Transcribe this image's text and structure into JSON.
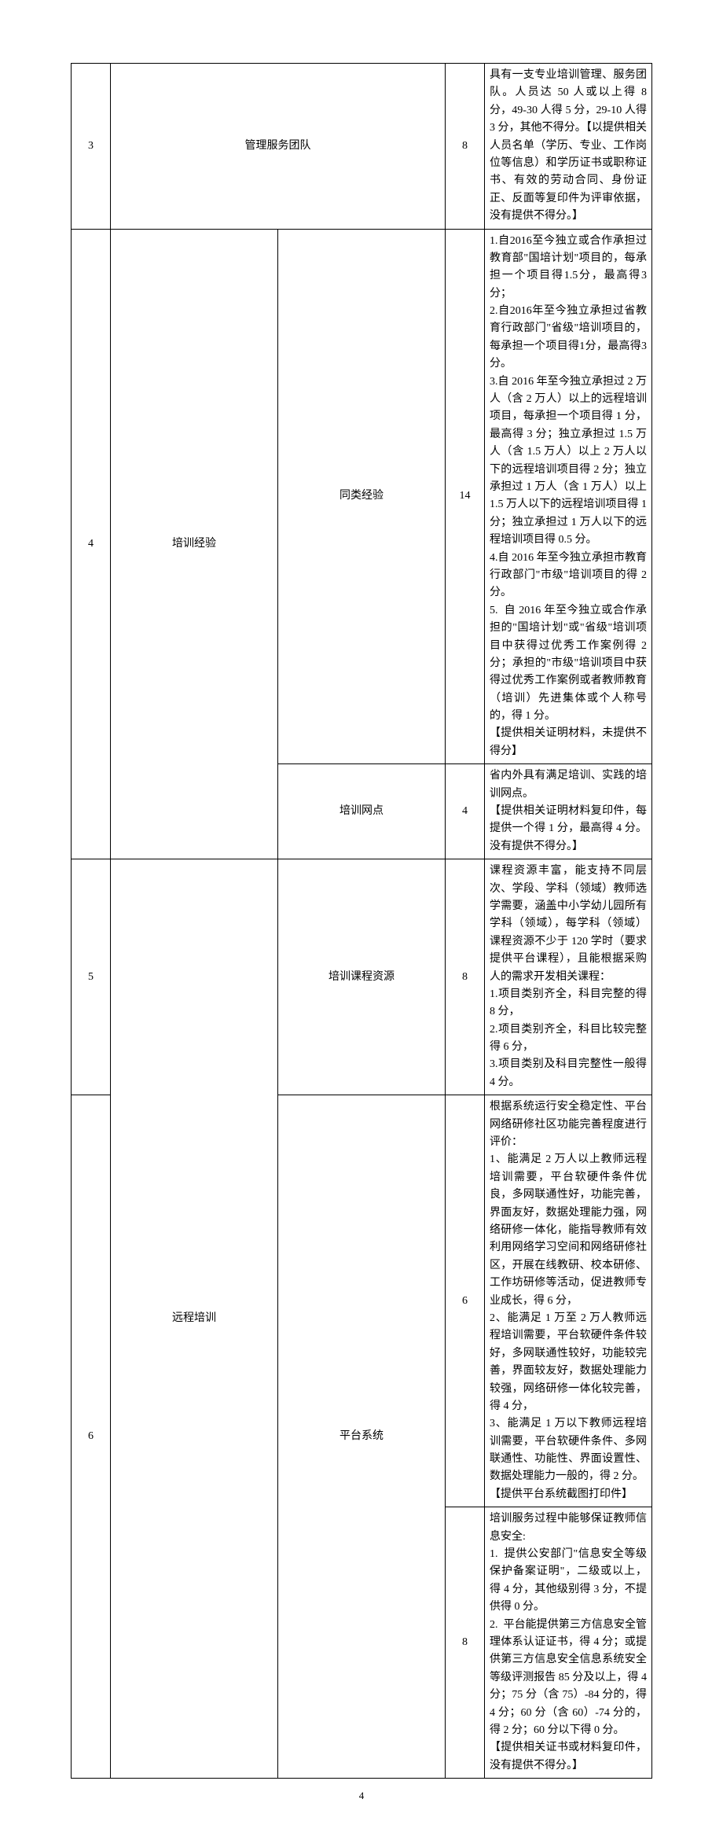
{
  "page_number": "4",
  "rows": [
    {
      "num": "3",
      "cat_merged": "管理服务团队",
      "score": "8",
      "desc": "具有一支专业培训管理、服务团队。人员达 50 人或以上得 8 分，49-30 人得 5 分，29-10 人得 3 分，其他不得分。【以提供相关人员名单（学历、专业、工作岗位等信息）和学历证书或职称证书、有效的劳动合同、身份证正、反面等复印件为评审依据，没有提供不得分。】"
    },
    {
      "num": "4",
      "cat1": "培训经验",
      "cat2": "同类经验",
      "score": "14",
      "desc": "1.自2016至今独立或合作承担过教育部\"国培计划\"项目的，每承担一个项目得1.5分，最高得3分；\n2.自2016年至今独立承担过省教育行政部门\"省级\"培训项目的，每承担一个项目得1分，最高得3分。\n3.自 2016 年至今独立承担过 2 万人（含 2 万人）以上的远程培训项目，每承担一个项目得 1 分，最高得 3 分；独立承担过 1.5 万人（含 1.5 万人）以上 2 万人以下的远程培训项目得 2 分；独立承担过 1 万人（含 1 万人）以上 1.5 万人以下的远程培训项目得 1 分；独立承担过 1 万人以下的远程培训项目得 0.5 分。\n4.自 2016 年至今独立承担市教育行政部门\"市级\"培训项目的得 2 分。\n5.  自 2016 年至今独立或合作承担的\"国培计划\"或\"省级\"培训项目中获得过优秀工作案例得 2 分；承担的\"市级\"培训项目中获得过优秀工作案例或者教师教育（培训）先进集体或个人称号的，得 1 分。\n【提供相关证明材料，未提供不得分】"
    },
    {
      "cat2": "培训网点",
      "score": "4",
      "desc": "省内外具有满足培训、实践的培训网点。\n【提供相关证明材料复印件，每提供一个得 1 分，最高得 4 分。没有提供不得分。】"
    },
    {
      "num": "5",
      "cat1": "远程培训",
      "cat2": "培训课程资源",
      "score": "8",
      "desc": "课程资源丰富，能支持不同层次、学段、学科（领域）教师选学需要，涵盖中小学幼儿园所有学科（领域），每学科（领域）课程资源不少于 120 学时（要求提供平台课程），且能根据采购人的需求开发相关课程：\n1.项目类别齐全，科目完整的得 8 分，\n2.项目类别齐全，科目比较完整得 6 分，\n3.项目类别及科目完整性一般得 4 分。"
    },
    {
      "num": "6",
      "cat2": "平台系统",
      "score": "6",
      "desc": "根据系统运行安全稳定性、平台网络研修社区功能完善程度进行评价：\n1、能满足 2 万人以上教师远程培训需要，平台软硬件条件优良，多网联通性好，功能完善，界面友好，数据处理能力强，网络研修一体化，能指导教师有效利用网络学习空间和网络研修社区，开展在线教研、校本研修、工作坊研修等活动，促进教师专业成长，得 6 分，\n2、能满足 1 万至 2 万人教师远程培训需要，平台软硬件条件较好，多网联通性较好，功能较完善，界面较友好，数据处理能力较强，网络研修一体化较完善，得 4 分，\n3、能满足 1 万以下教师远程培训需要，平台软硬件条件、多网联通性、功能性、界面设置性、数据处理能力一般的，得 2 分。\n【提供平台系统截图打印件】"
    },
    {
      "score": "8",
      "desc": "培训服务过程中能够保证教师信息安全:\n1.  提供公安部门\"信息安全等级保护备案证明\"，二级或以上，得 4 分，其他级别得 3 分，不提供得 0 分。\n2.  平台能提供第三方信息安全管理体系认证证书，得 4 分；或提供第三方信息安全信息系统安全等级评测报告 85 分及以上，得 4 分；75 分（含 75）-84 分的，得 4 分；60 分（含 60）-74 分的，得 2 分；60 分以下得 0 分。\n【提供相关证书或材料复印件，没有提供不得分。】"
    }
  ]
}
